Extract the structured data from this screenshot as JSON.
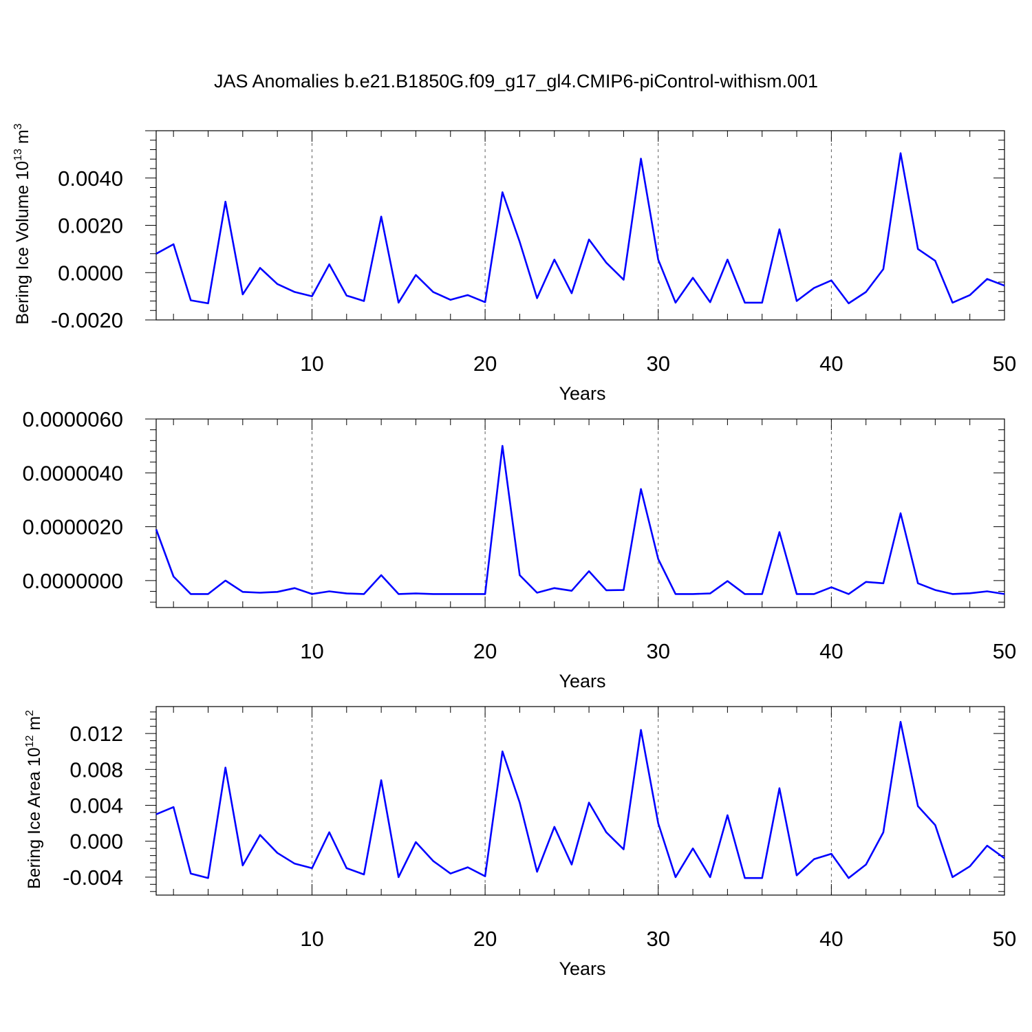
{
  "title": "JAS Anomalies b.e21.B1850G.f09_g17_gl4.CMIP6-piControl-withism.001",
  "colors": {
    "line": "#0000ff",
    "axis": "#000000"
  },
  "chart_data": [
    {
      "type": "line",
      "xlabel": "Years",
      "ylabel": "Bering Ice Volume 10",
      "ylabel_sup": "13",
      "ylabel_unit": " m",
      "ylabel_unit_sup": "3",
      "xlim": [
        1,
        50
      ],
      "ylim": [
        -0.002,
        0.006
      ],
      "xticks": [
        10,
        20,
        30,
        40,
        50
      ],
      "yticks": [
        "-0.0020",
        "0.0000",
        "0.0020",
        "0.0040"
      ],
      "grid": "vertical dashed at major x ticks",
      "x": [
        1,
        2,
        3,
        4,
        5,
        6,
        7,
        8,
        9,
        10,
        11,
        12,
        13,
        14,
        15,
        16,
        17,
        18,
        19,
        20,
        21,
        22,
        23,
        24,
        25,
        26,
        27,
        28,
        29,
        30,
        31,
        32,
        33,
        34,
        35,
        36,
        37,
        38,
        39,
        40,
        41,
        42,
        43,
        44,
        45,
        46,
        47,
        48,
        49,
        50
      ],
      "series": [
        {
          "values": [
            0.0008,
            0.0012,
            -0.00117,
            -0.0013,
            0.003,
            -0.00092,
            0.0002,
            -0.00048,
            -0.00082,
            -0.001,
            0.00035,
            -0.00097,
            -0.0012,
            0.00237,
            -0.00127,
            -0.0001,
            -0.00082,
            -0.00115,
            -0.00095,
            -0.00125,
            0.0034,
            0.0013,
            -0.00108,
            0.00055,
            -0.00087,
            0.0014,
            0.00042,
            -0.0003,
            0.00482,
            0.00055,
            -0.00127,
            -0.00022,
            -0.00125,
            0.00055,
            -0.00127,
            -0.00127,
            0.00183,
            -0.0012,
            -0.00065,
            -0.00033,
            -0.0013,
            -0.00082,
            0.00015,
            0.00505,
            0.001,
            0.0005,
            -0.00127,
            -0.00095,
            -0.00027,
            -0.00055
          ]
        }
      ]
    },
    {
      "type": "line",
      "xlabel": "Years",
      "ylabel": "",
      "xlim": [
        1,
        50
      ],
      "ylim": [
        -1e-06,
        6e-06
      ],
      "xticks": [
        10,
        20,
        30,
        40,
        50
      ],
      "yticks": [
        "0.0000000",
        "0.0000020",
        "0.0000040",
        "0.0000060"
      ],
      "grid": "vertical dashed at major x ticks",
      "x": [
        1,
        2,
        3,
        4,
        5,
        6,
        7,
        8,
        9,
        10,
        11,
        12,
        13,
        14,
        15,
        16,
        17,
        18,
        19,
        20,
        21,
        22,
        23,
        24,
        25,
        26,
        27,
        28,
        29,
        30,
        31,
        32,
        33,
        34,
        35,
        36,
        37,
        38,
        39,
        40,
        41,
        42,
        43,
        44,
        45,
        46,
        47,
        48,
        49,
        50
      ],
      "series": [
        {
          "values": [
            1.9e-06,
            1.5e-07,
            -5e-07,
            -5e-07,
            -0.0,
            -4.2e-07,
            -4.5e-07,
            -4.2e-07,
            -2.8e-07,
            -5e-07,
            -4e-07,
            -4.8e-07,
            -5e-07,
            2e-07,
            -5e-07,
            -4.8e-07,
            -5e-07,
            -5e-07,
            -5e-07,
            -5e-07,
            5e-06,
            2e-07,
            -4.5e-07,
            -2.8e-07,
            -3.8e-07,
            3.5e-07,
            -3.6e-07,
            -3.5e-07,
            3.4e-06,
            8e-07,
            -5e-07,
            -5e-07,
            -4.8e-07,
            -2e-08,
            -5e-07,
            -5e-07,
            1.8e-06,
            -5e-07,
            -5e-07,
            -2.5e-07,
            -5e-07,
            -5e-08,
            -1e-07,
            2.5e-06,
            -1e-07,
            -3.5e-07,
            -5e-07,
            -4.7e-07,
            -4e-07,
            -5e-07
          ]
        }
      ]
    },
    {
      "type": "line",
      "xlabel": "Years",
      "ylabel": "Bering Ice Area 10",
      "ylabel_sup": "12",
      "ylabel_unit": " m",
      "ylabel_unit_sup": "2",
      "xlim": [
        1,
        50
      ],
      "ylim": [
        -0.006,
        0.015
      ],
      "xticks": [
        10,
        20,
        30,
        40,
        50
      ],
      "yticks": [
        "-0.004",
        "0.000",
        "0.004",
        "0.008",
        "0.012"
      ],
      "grid": "vertical dashed at major x ticks",
      "x": [
        1,
        2,
        3,
        4,
        5,
        6,
        7,
        8,
        9,
        10,
        11,
        12,
        13,
        14,
        15,
        16,
        17,
        18,
        19,
        20,
        21,
        22,
        23,
        24,
        25,
        26,
        27,
        28,
        29,
        30,
        31,
        32,
        33,
        34,
        35,
        36,
        37,
        38,
        39,
        40,
        41,
        42,
        43,
        44,
        45,
        46,
        47,
        48,
        49,
        50
      ],
      "series": [
        {
          "values": [
            0.003,
            0.0038,
            -0.0036,
            -0.0041,
            0.0082,
            -0.0027,
            0.0007,
            -0.0013,
            -0.0025,
            -0.003,
            0.001,
            -0.003,
            -0.0037,
            0.0068,
            -0.004,
            -0.0001,
            -0.0022,
            -0.0036,
            -0.0029,
            -0.0039,
            0.01,
            0.0043,
            -0.0034,
            0.0016,
            -0.0026,
            0.0043,
            0.001,
            -0.0009,
            0.0124,
            0.002,
            -0.004,
            -0.0008,
            -0.004,
            0.0029,
            -0.0041,
            -0.0041,
            0.0059,
            -0.0038,
            -0.002,
            -0.0014,
            -0.0041,
            -0.0026,
            0.001,
            0.0133,
            0.0039,
            0.0018,
            -0.004,
            -0.0028,
            -0.0005,
            -0.0019
          ]
        }
      ]
    }
  ]
}
